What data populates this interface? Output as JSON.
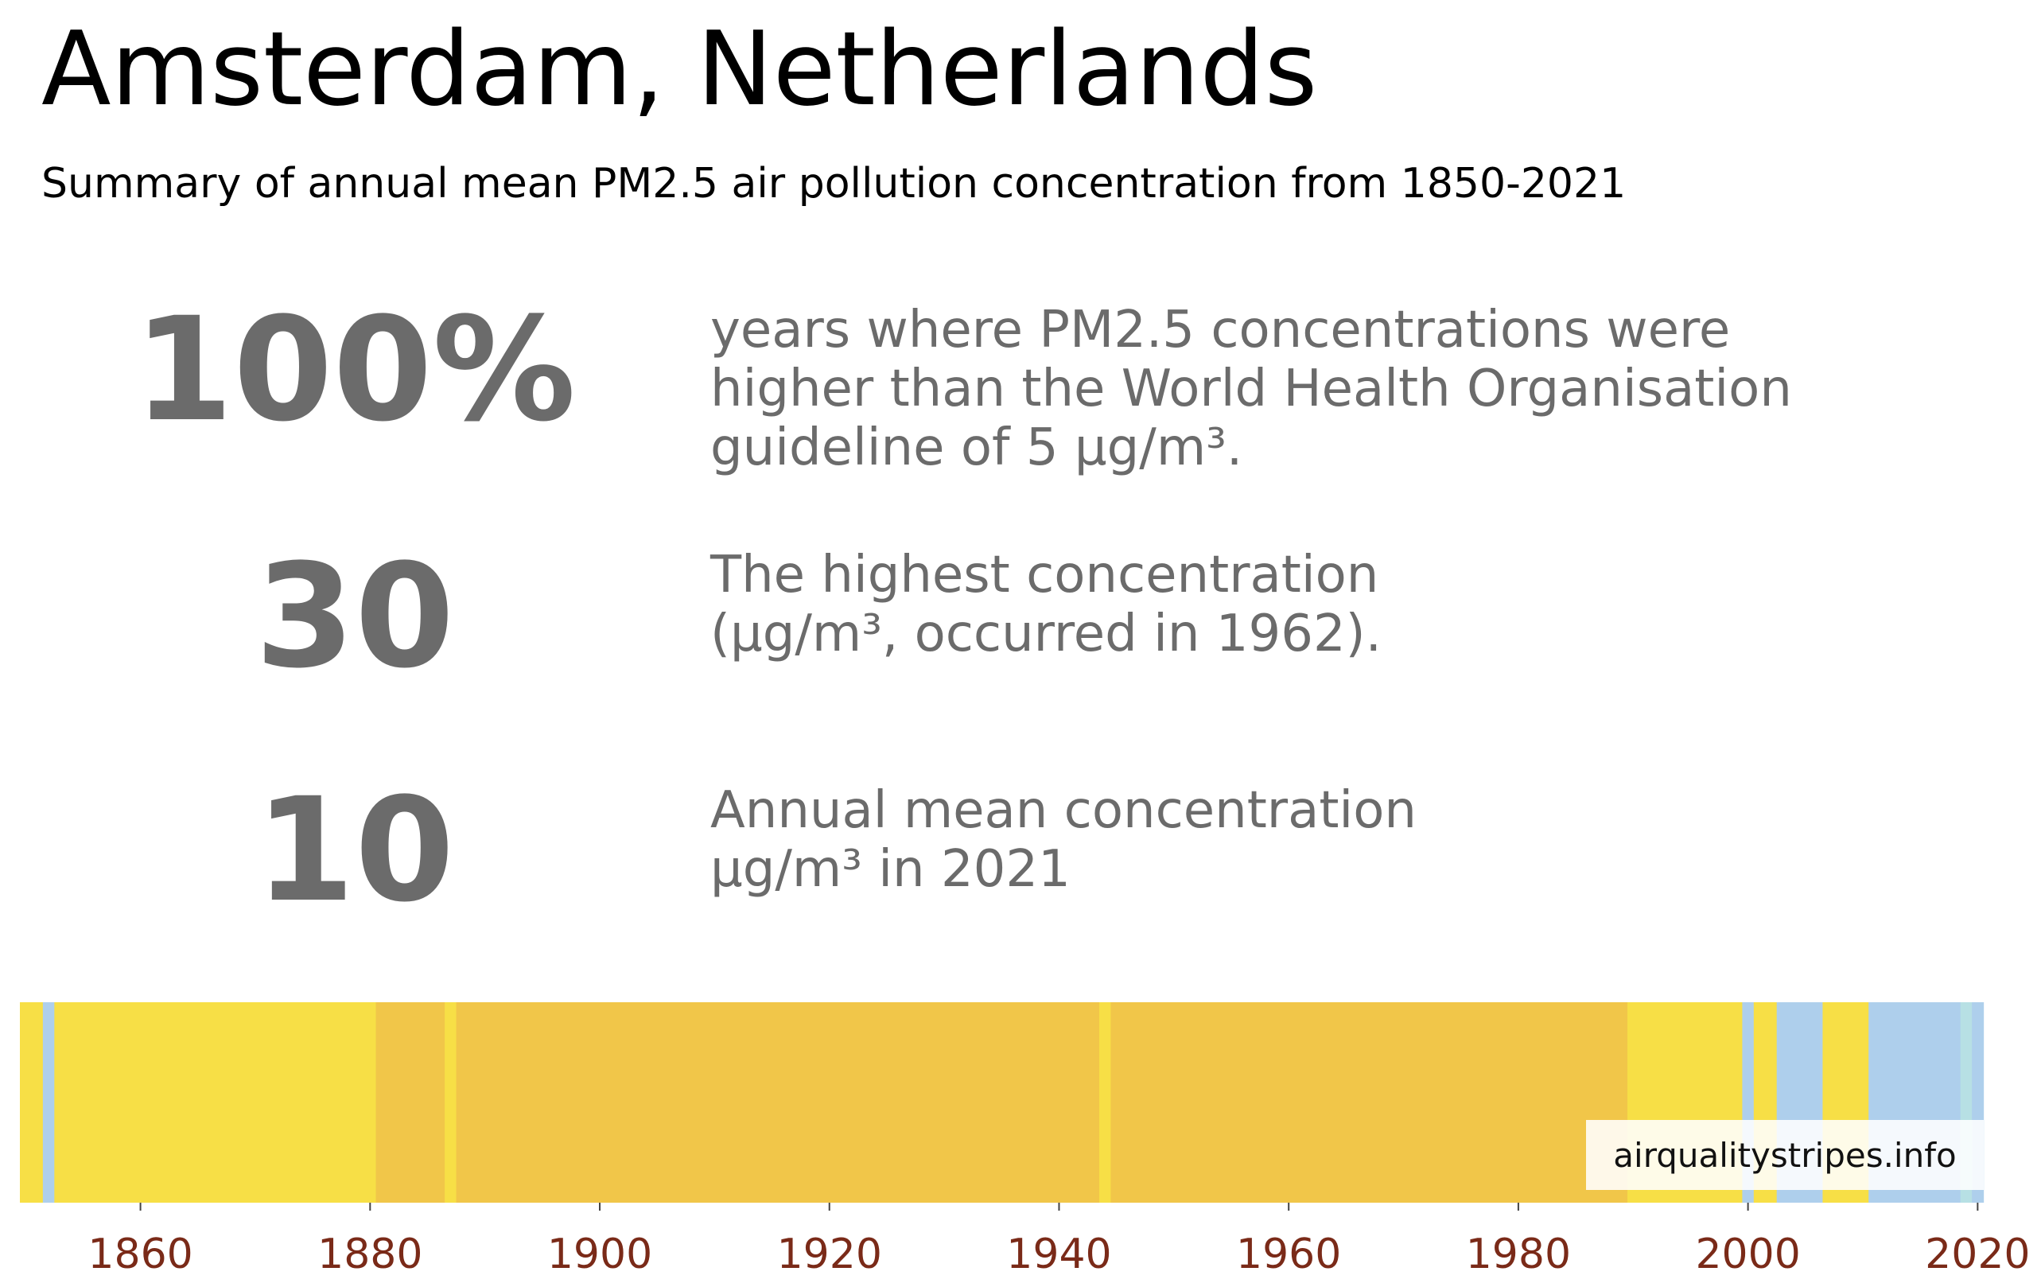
{
  "title": "Amsterdam, Netherlands",
  "subtitle": "Summary of annual mean PM2.5 air pollution concentration from 1850-2021",
  "stats": [
    {
      "value": "100%",
      "description": [
        "years where PM2.5 concentrations were",
        "higher than the World Health Organisation",
        "guideline of 5 µg/m³."
      ]
    },
    {
      "value": "30",
      "description": [
        "The highest concentration",
        "(µg/m³, occurred in 1962)."
      ]
    },
    {
      "value": "10",
      "description": [
        "Annual mean concentration",
        "µg/m³ in 2021"
      ]
    }
  ],
  "watermark": "airqualitystripes.info",
  "colors": {
    "text_primary": "#000000",
    "text_stat": "#6b6b6b",
    "tick_label": "#7a2a18"
  },
  "chart_data": {
    "type": "heatmap",
    "x_range": [
      1850,
      2021
    ],
    "x_ticks": [
      "1860",
      "1880",
      "1900",
      "1920",
      "1940",
      "1960",
      "1980",
      "2000",
      "2020"
    ],
    "stripes": [
      {
        "from": 1850,
        "to": 1852,
        "color": "#f7df46"
      },
      {
        "from": 1852,
        "to": 1853,
        "color": "#aecfec"
      },
      {
        "from": 1853,
        "to": 1881,
        "color": "#f7df46"
      },
      {
        "from": 1881,
        "to": 1887,
        "color": "#f1c649"
      },
      {
        "from": 1887,
        "to": 1888,
        "color": "#f7df46"
      },
      {
        "from": 1888,
        "to": 1944,
        "color": "#f1c649"
      },
      {
        "from": 1944,
        "to": 1945,
        "color": "#f7df46"
      },
      {
        "from": 1945,
        "to": 1990,
        "color": "#f1c649"
      },
      {
        "from": 1990,
        "to": 2000,
        "color": "#f7df46"
      },
      {
        "from": 2000,
        "to": 2001,
        "color": "#aecfec"
      },
      {
        "from": 2001,
        "to": 2003,
        "color": "#f7df46"
      },
      {
        "from": 2003,
        "to": 2007,
        "color": "#aecfec"
      },
      {
        "from": 2007,
        "to": 2011,
        "color": "#f7df46"
      },
      {
        "from": 2011,
        "to": 2019,
        "color": "#aecfec"
      },
      {
        "from": 2019,
        "to": 2020,
        "color": "#b7e0e4"
      },
      {
        "from": 2020,
        "to": 2021,
        "color": "#aecfec"
      }
    ]
  }
}
